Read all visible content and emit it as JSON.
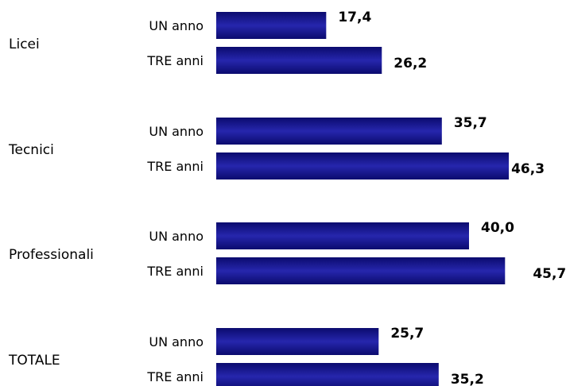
{
  "chart_data": {
    "type": "bar",
    "orientation": "horizontal",
    "grid": false,
    "xlim": [
      0,
      50
    ],
    "groups": [
      {
        "label": "Licei",
        "bars": [
          {
            "label": "UN anno",
            "value": 17.4,
            "display": "17,4"
          },
          {
            "label": "TRE anni",
            "value": 26.2,
            "display": "26,2"
          }
        ]
      },
      {
        "label": "Tecnici",
        "bars": [
          {
            "label": "UN anno",
            "value": 35.7,
            "display": "35,7"
          },
          {
            "label": "TRE anni",
            "value": 46.3,
            "display": "46,3"
          }
        ]
      },
      {
        "label": "Professionali",
        "bars": [
          {
            "label": "UN anno",
            "value": 40.0,
            "display": "40,0"
          },
          {
            "label": "TRE anni",
            "value": 45.7,
            "display": "45,7"
          }
        ]
      },
      {
        "label": "TOTALE",
        "bars": [
          {
            "label": "UN anno",
            "value": 25.7,
            "display": "25,7"
          },
          {
            "label": "TRE anni",
            "value": 35.2,
            "display": "35,2"
          }
        ]
      }
    ],
    "colors": {
      "bar_dark": "#0b0b6e",
      "bar_light": "#2626ad",
      "text": "#000000"
    }
  }
}
